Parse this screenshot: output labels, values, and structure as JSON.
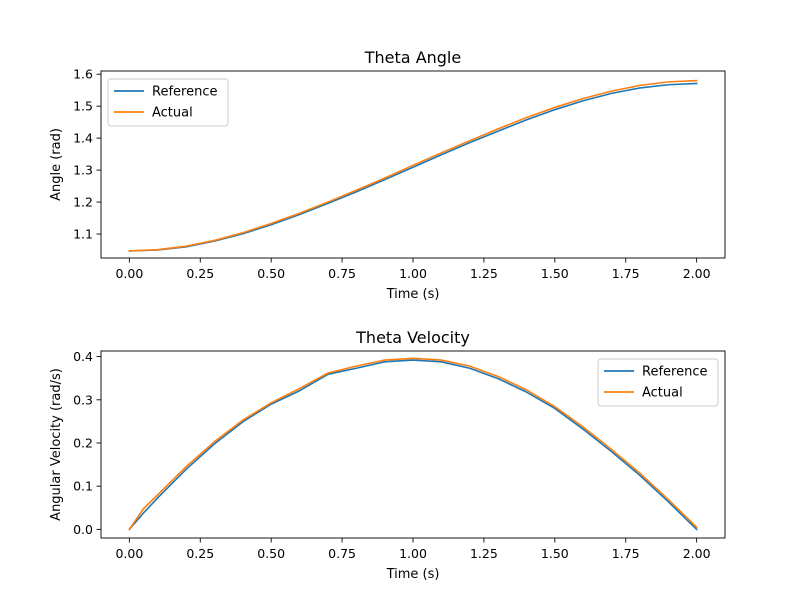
{
  "chart_data": [
    {
      "type": "line",
      "title": "Theta Angle",
      "xlabel": "Time (s)",
      "ylabel": "Angle (rad)",
      "xlim": [
        -0.1,
        2.1
      ],
      "ylim": [
        1.025,
        1.61
      ],
      "xticks": [
        0.0,
        0.25,
        0.5,
        0.75,
        1.0,
        1.25,
        1.5,
        1.75,
        2.0
      ],
      "xtick_labels": [
        "0.00",
        "0.25",
        "0.50",
        "0.75",
        "1.00",
        "1.25",
        "1.50",
        "1.75",
        "2.00"
      ],
      "yticks": [
        1.1,
        1.2,
        1.3,
        1.4,
        1.5,
        1.6
      ],
      "ytick_labels": [
        "1.1",
        "1.2",
        "1.3",
        "1.4",
        "1.5",
        "1.6"
      ],
      "legend_position": "upper-left",
      "grid": false,
      "x": [
        0.0,
        0.1,
        0.2,
        0.3,
        0.4,
        0.5,
        0.6,
        0.7,
        0.8,
        0.9,
        1.0,
        1.1,
        1.2,
        1.3,
        1.4,
        1.5,
        1.6,
        1.7,
        1.8,
        1.9,
        2.0
      ],
      "series": [
        {
          "name": "Reference",
          "color": "#1f77b4",
          "values": [
            1.047,
            1.05,
            1.06,
            1.078,
            1.101,
            1.129,
            1.161,
            1.196,
            1.232,
            1.27,
            1.309,
            1.348,
            1.386,
            1.422,
            1.457,
            1.489,
            1.517,
            1.54,
            1.557,
            1.567,
            1.571
          ]
        },
        {
          "name": "Actual",
          "color": "#ff7f0e",
          "values": [
            1.047,
            1.051,
            1.062,
            1.08,
            1.104,
            1.133,
            1.165,
            1.2,
            1.237,
            1.275,
            1.315,
            1.354,
            1.392,
            1.429,
            1.464,
            1.496,
            1.524,
            1.547,
            1.565,
            1.576,
            1.58
          ]
        }
      ]
    },
    {
      "type": "line",
      "title": "Theta Velocity",
      "xlabel": "Time (s)",
      "ylabel": "Angular Velocity (rad/s)",
      "xlim": [
        -0.1,
        2.1
      ],
      "ylim": [
        -0.02,
        0.413
      ],
      "xticks": [
        0.0,
        0.25,
        0.5,
        0.75,
        1.0,
        1.25,
        1.5,
        1.75,
        2.0
      ],
      "xtick_labels": [
        "0.00",
        "0.25",
        "0.50",
        "0.75",
        "1.00",
        "1.25",
        "1.50",
        "1.75",
        "2.00"
      ],
      "yticks": [
        0.0,
        0.1,
        0.2,
        0.3,
        0.4
      ],
      "ytick_labels": [
        "0.0",
        "0.1",
        "0.2",
        "0.3",
        "0.4"
      ],
      "legend_position": "upper-right",
      "grid": false,
      "x": [
        0.0,
        0.05,
        0.1,
        0.2,
        0.3,
        0.4,
        0.5,
        0.6,
        0.7,
        0.8,
        0.9,
        1.0,
        1.1,
        1.2,
        1.3,
        1.4,
        1.5,
        1.6,
        1.7,
        1.8,
        1.9,
        2.0
      ],
      "series": [
        {
          "name": "Reference",
          "color": "#1f77b4",
          "values": [
            0.0,
            0.038,
            0.073,
            0.139,
            0.198,
            0.249,
            0.29,
            0.321,
            0.359,
            0.373,
            0.388,
            0.392,
            0.388,
            0.373,
            0.349,
            0.318,
            0.28,
            0.232,
            0.18,
            0.125,
            0.064,
            0.0
          ]
        },
        {
          "name": "Actual",
          "color": "#ff7f0e",
          "values": [
            0.0,
            0.048,
            0.08,
            0.145,
            0.203,
            0.253,
            0.293,
            0.326,
            0.362,
            0.378,
            0.392,
            0.396,
            0.392,
            0.378,
            0.354,
            0.323,
            0.284,
            0.237,
            0.185,
            0.13,
            0.069,
            0.005
          ]
        }
      ]
    }
  ]
}
